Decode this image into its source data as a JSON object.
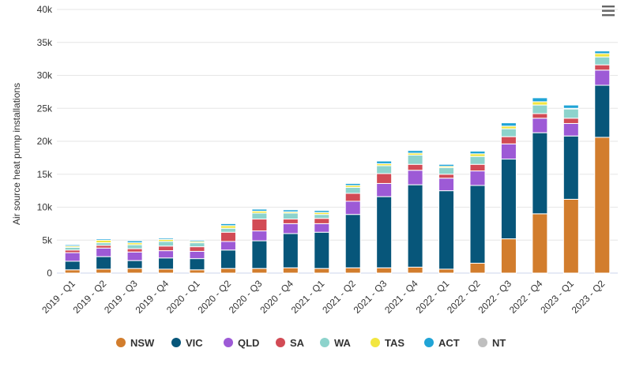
{
  "chart_data": {
    "type": "bar",
    "stacked": true,
    "title": "",
    "xlabel": "",
    "ylabel": "Air source heat pump installations",
    "ylim": [
      0,
      40000
    ],
    "yticks": [
      "0",
      "5k",
      "10k",
      "15k",
      "20k",
      "25k",
      "30k",
      "35k",
      "40k"
    ],
    "grid": true,
    "legend_position": "bottom",
    "categories": [
      "2019 - Q1",
      "2019 - Q2",
      "2019 - Q3",
      "2019 - Q4",
      "2020 - Q1",
      "2020 - Q2",
      "2020 - Q3",
      "2020 - Q4",
      "2021 - Q1",
      "2021 - Q2",
      "2021 - Q3",
      "2021 - Q4",
      "2022 - Q1",
      "2022 - Q2",
      "2022 - Q3",
      "2022 - Q4",
      "2023 - Q1",
      "2023 - Q2"
    ],
    "series": [
      {
        "name": "NSW",
        "color": "#d27d2d",
        "values": [
          500,
          600,
          700,
          600,
          500,
          700,
          700,
          800,
          700,
          800,
          800,
          900,
          600,
          1500,
          5200,
          9000,
          11200,
          20600
        ]
      },
      {
        "name": "VIC",
        "color": "#07567a",
        "values": [
          1300,
          1900,
          1200,
          1700,
          1700,
          2800,
          4200,
          5200,
          5500,
          8100,
          10800,
          12500,
          11900,
          11800,
          12100,
          12300,
          9600,
          7900
        ]
      },
      {
        "name": "QLD",
        "color": "#9d5ad6",
        "values": [
          1300,
          1300,
          1300,
          1100,
          1100,
          1300,
          1500,
          1500,
          1300,
          2000,
          2000,
          2200,
          1900,
          2200,
          2300,
          2200,
          1900,
          2300
        ]
      },
      {
        "name": "SA",
        "color": "#d24b55",
        "values": [
          400,
          400,
          500,
          700,
          700,
          1400,
          1800,
          700,
          800,
          1200,
          1500,
          900,
          600,
          1000,
          1100,
          700,
          800,
          800
        ]
      },
      {
        "name": "WA",
        "color": "#8dd3cc",
        "values": [
          400,
          400,
          600,
          700,
          600,
          600,
          900,
          900,
          600,
          900,
          1200,
          1400,
          1000,
          1200,
          1200,
          1300,
          1400,
          1200
        ]
      },
      {
        "name": "TAS",
        "color": "#f2e640",
        "values": [
          200,
          400,
          300,
          300,
          200,
          400,
          300,
          200,
          300,
          300,
          300,
          300,
          200,
          400,
          400,
          500,
          100,
          500
        ]
      },
      {
        "name": "ACT",
        "color": "#20a4d6",
        "values": [
          200,
          200,
          300,
          200,
          200,
          300,
          300,
          300,
          300,
          300,
          400,
          400,
          300,
          400,
          500,
          600,
          500,
          400
        ]
      },
      {
        "name": "NT",
        "color": "#bfbfbf",
        "values": [
          0,
          0,
          0,
          0,
          0,
          0,
          0,
          0,
          0,
          0,
          0,
          0,
          0,
          0,
          0,
          0,
          0,
          0
        ]
      }
    ]
  },
  "menu": {
    "icon": "hamburger-menu-icon"
  }
}
